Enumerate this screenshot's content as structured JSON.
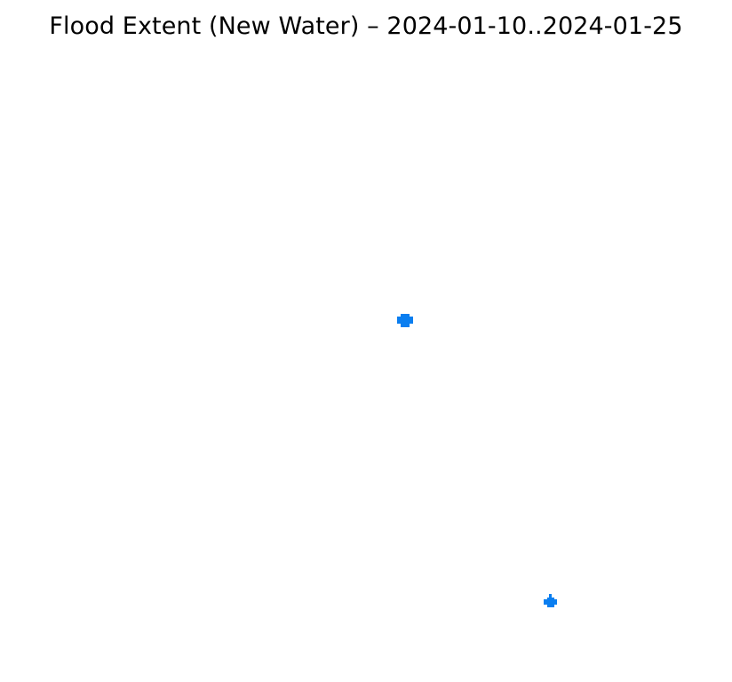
{
  "map": {
    "title": "Flood Extent (New Water) – 2024-01-10..2024-01-25",
    "water_color": "#0a7ef0",
    "background_color": "#ffffff"
  }
}
